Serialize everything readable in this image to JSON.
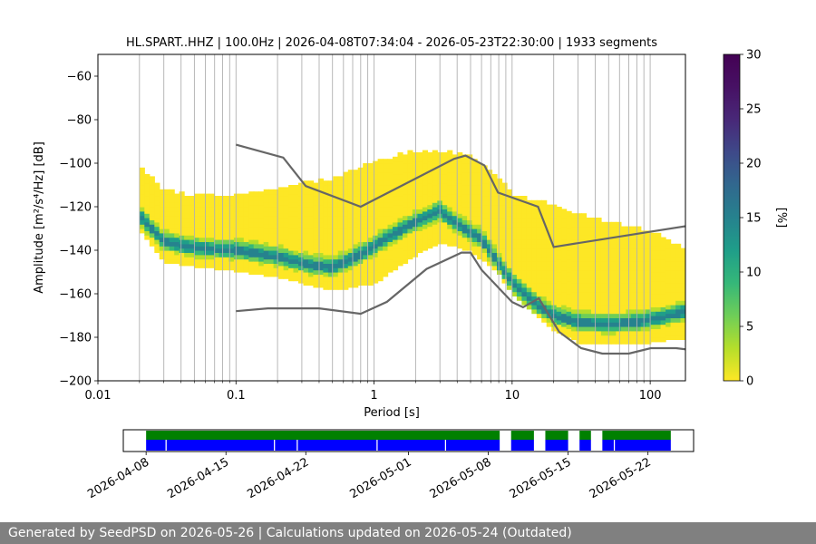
{
  "chart_data": {
    "type": "heatmap",
    "title": "HL.SPART..HHZ | 100.0Hz | 2026-04-08T07:34:04 - 2026-05-23T22:30:00 | 1933 segments",
    "xlabel": "Period [s]",
    "ylabel": "Amplitude [m²/s⁴/Hz] [dB]",
    "x_scale": "log",
    "xlim": [
      0.01,
      180
    ],
    "ylim": [
      -200,
      -50
    ],
    "x_ticks": [
      0.01,
      0.1,
      1,
      10,
      100
    ],
    "x_tick_labels": [
      "0.01",
      "0.1",
      "1",
      "10",
      "100"
    ],
    "y_ticks": [
      -200,
      -180,
      -160,
      -140,
      -120,
      -100,
      -80,
      -60
    ],
    "y_tick_labels": [
      "−200",
      "−180",
      "−160",
      "−140",
      "−120",
      "−100",
      "−80",
      "−60"
    ],
    "grid": "vertical at period bins",
    "grid_periods": [
      0.02,
      0.03,
      0.04,
      0.05,
      0.06,
      0.07,
      0.08,
      0.09,
      0.1,
      0.2,
      0.3,
      0.4,
      0.5,
      0.6,
      0.7,
      0.8,
      0.9,
      1,
      2,
      3,
      4,
      5,
      6,
      7,
      8,
      9,
      10,
      20,
      30,
      40,
      50,
      60,
      70,
      80,
      90,
      100
    ],
    "colorbar": {
      "label": "[%]",
      "range": [
        0,
        30
      ],
      "ticks": [
        0,
        5,
        10,
        15,
        20,
        25,
        30
      ],
      "colormap": "viridis_r"
    },
    "psd_mode": {
      "periods": [
        0.02,
        0.022,
        0.025,
        0.03,
        0.05,
        0.1,
        0.2,
        0.35,
        0.5,
        0.8,
        1.2,
        2,
        3,
        4,
        5,
        6,
        8,
        10,
        15,
        20,
        30,
        50,
        80,
        120,
        180
      ],
      "db": [
        -124,
        -127,
        -131,
        -136,
        -139,
        -140,
        -143,
        -147,
        -148,
        -142,
        -135,
        -127,
        -122,
        -128,
        -132,
        -135,
        -146,
        -155,
        -165,
        -170,
        -173,
        -174,
        -173,
        -171,
        -168
      ]
    },
    "psd_spread": {
      "periods": [
        0.02,
        0.03,
        0.05,
        0.1,
        0.2,
        0.5,
        1,
        2,
        3,
        5,
        8,
        10,
        20,
        30,
        50,
        100,
        180
      ],
      "upper_db": [
        -102,
        -113,
        -116,
        -115,
        -112,
        -108,
        -100,
        -95,
        -95,
        -98,
        -108,
        -115,
        -120,
        -124,
        -128,
        -132,
        -140
      ],
      "lower_db": [
        -130,
        -145,
        -147,
        -149,
        -152,
        -158,
        -155,
        -142,
        -136,
        -140,
        -150,
        -160,
        -176,
        -182,
        -183,
        -182,
        -180
      ]
    },
    "series": [
      {
        "name": "NHNM",
        "color": "#666666",
        "x": [
          0.1,
          0.22,
          0.32,
          0.8,
          3.8,
          4.6,
          6.3,
          7.9,
          15.4,
          20,
          354
        ],
        "y": [
          -91.5,
          -97.4,
          -110.5,
          -120,
          -98,
          -96.5,
          -101,
          -113.5,
          -120,
          -138.5,
          -126
        ]
      },
      {
        "name": "NLNM",
        "color": "#666666",
        "x": [
          0.1,
          0.17,
          0.4,
          0.8,
          1.24,
          2.4,
          4.3,
          5,
          6,
          10,
          12,
          15.6,
          21.9,
          31.6,
          45,
          70,
          101,
          154,
          328
        ],
        "y": [
          -168,
          -166.7,
          -166.7,
          -169.2,
          -163.7,
          -148.6,
          -141.1,
          -141.1,
          -149,
          -163.8,
          -166.2,
          -162.1,
          -177.5,
          -185,
          -187.5,
          -187.5,
          -185,
          -185,
          -187.5
        ]
      }
    ],
    "availability": {
      "x_ticks": [
        "2026-04-08",
        "2026-04-15",
        "2026-04-22",
        "2026-05-01",
        "2026-05-08",
        "2026-05-15",
        "2026-05-22"
      ],
      "range": [
        "2026-04-06",
        "2026-05-26"
      ],
      "green_segments": [
        [
          "2026-04-08",
          "2026-05-09"
        ],
        [
          "2026-05-10",
          "2026-05-12"
        ],
        [
          "2026-05-13",
          "2026-05-15"
        ],
        [
          "2026-05-16",
          "2026-05-17"
        ],
        [
          "2026-05-18",
          "2026-05-24"
        ]
      ],
      "blue_segments": [
        [
          "2026-04-08",
          "2026-04-09.7"
        ],
        [
          "2026-04-09.8",
          "2026-04-19.2"
        ],
        [
          "2026-04-19.3",
          "2026-04-21.2"
        ],
        [
          "2026-04-21.3",
          "2026-04-28.2"
        ],
        [
          "2026-04-28.3",
          "2026-05-04.2"
        ],
        [
          "2026-05-04.3",
          "2026-05-09"
        ],
        [
          "2026-05-10",
          "2026-05-12"
        ],
        [
          "2026-05-13",
          "2026-05-15"
        ],
        [
          "2026-05-16",
          "2026-05-17"
        ],
        [
          "2026-05-18",
          "2026-05-19"
        ],
        [
          "2026-05-19.1",
          "2026-05-24"
        ]
      ],
      "colors": {
        "top": "#008000",
        "bottom": "#0000ff"
      }
    }
  },
  "footer": {
    "text": "Generated by SeedPSD on 2026-05-26 | Calculations updated on 2026-05-24 (Outdated)"
  }
}
